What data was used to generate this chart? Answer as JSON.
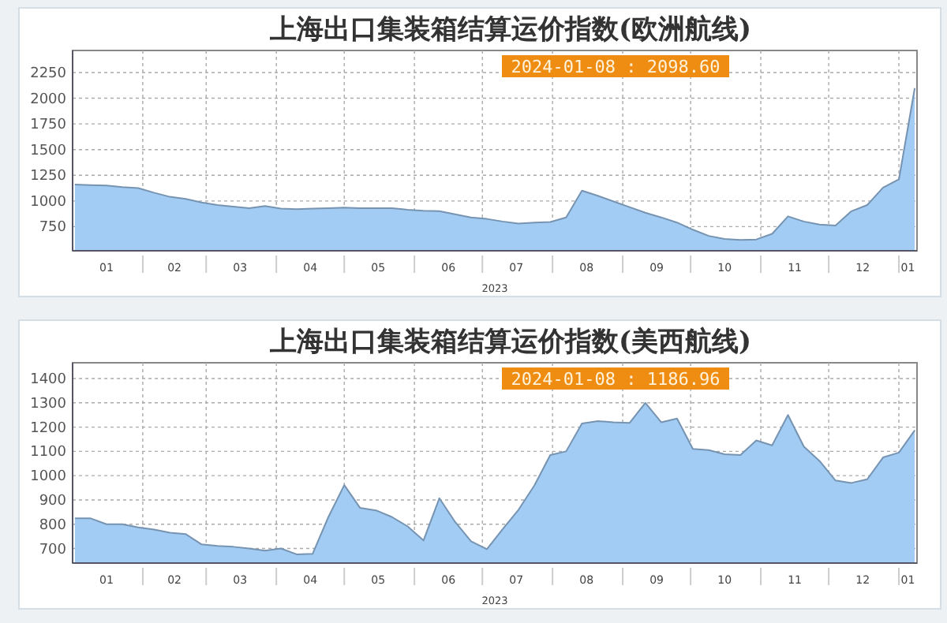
{
  "chart_data": [
    {
      "type": "area",
      "title": "上海出口集装箱结算运价指数(欧洲航线)",
      "xlabel": "2023",
      "annotations": [
        "2024-01-08 : 2098.60"
      ],
      "x": [
        "2023-01-02",
        "2023-01-09",
        "2023-01-16",
        "2023-01-23",
        "2023-01-30",
        "2023-02-06",
        "2023-02-13",
        "2023-02-20",
        "2023-02-27",
        "2023-03-06",
        "2023-03-13",
        "2023-03-20",
        "2023-03-27",
        "2023-04-03",
        "2023-04-10",
        "2023-04-17",
        "2023-04-24",
        "2023-05-01",
        "2023-05-08",
        "2023-05-15",
        "2023-05-22",
        "2023-05-29",
        "2023-06-05",
        "2023-06-12",
        "2023-06-19",
        "2023-06-26",
        "2023-07-03",
        "2023-07-10",
        "2023-07-17",
        "2023-07-24",
        "2023-07-31",
        "2023-08-07",
        "2023-08-14",
        "2023-08-21",
        "2023-08-28",
        "2023-09-04",
        "2023-09-11",
        "2023-09-18",
        "2023-09-25",
        "2023-10-02",
        "2023-10-09",
        "2023-10-16",
        "2023-10-23",
        "2023-10-30",
        "2023-11-06",
        "2023-11-13",
        "2023-11-20",
        "2023-11-27",
        "2023-12-04",
        "2023-12-11",
        "2023-12-18",
        "2023-12-25",
        "2024-01-01",
        "2024-01-08"
      ],
      "series": [
        {
          "color": "#a3ccf4",
          "values": [
            1160,
            1155,
            1150,
            1135,
            1125,
            1080,
            1040,
            1020,
            985,
            960,
            945,
            930,
            950,
            925,
            920,
            925,
            930,
            935,
            930,
            930,
            930,
            915,
            905,
            900,
            870,
            840,
            825,
            800,
            780,
            790,
            795,
            840,
            1100,
            1050,
            995,
            940,
            885,
            840,
            790,
            720,
            660,
            630,
            620,
            625,
            680,
            850,
            800,
            770,
            760,
            900,
            960,
            1130,
            1210,
            2098.6
          ]
        }
      ],
      "xlim": [
        "2023-01-01",
        "2024-01-09"
      ],
      "xticks": [
        {
          "value": "2023-01-16",
          "label": "01"
        },
        {
          "value": "2023-02-01",
          "label": null
        },
        {
          "value": "2023-02-15",
          "label": "02"
        },
        {
          "value": "2023-03-01",
          "label": null
        },
        {
          "value": "2023-03-16",
          "label": "03"
        },
        {
          "value": "2023-04-01",
          "label": null
        },
        {
          "value": "2023-04-16",
          "label": "04"
        },
        {
          "value": "2023-05-01",
          "label": null
        },
        {
          "value": "2023-05-16",
          "label": "05"
        },
        {
          "value": "2023-06-01",
          "label": null
        },
        {
          "value": "2023-06-16",
          "label": "06"
        },
        {
          "value": "2023-07-01",
          "label": null
        },
        {
          "value": "2023-07-16",
          "label": "07"
        },
        {
          "value": "2023-08-01",
          "label": null
        },
        {
          "value": "2023-08-16",
          "label": "08"
        },
        {
          "value": "2023-09-01",
          "label": null
        },
        {
          "value": "2023-09-16",
          "label": "09"
        },
        {
          "value": "2023-10-01",
          "label": null
        },
        {
          "value": "2023-10-16",
          "label": "10"
        },
        {
          "value": "2023-11-01",
          "label": null
        },
        {
          "value": "2023-11-16",
          "label": "11"
        },
        {
          "value": "2023-12-01",
          "label": null
        },
        {
          "value": "2023-12-16",
          "label": "12"
        },
        {
          "value": "2024-01-01",
          "label": null
        },
        {
          "value": "2024-01-05",
          "label": "01"
        }
      ],
      "ylim": [
        515,
        2465
      ],
      "yticks": [
        750,
        1000,
        1250,
        1500,
        1750,
        2000,
        2250
      ],
      "grid": true
    },
    {
      "type": "area",
      "title": "上海出口集装箱结算运价指数(美西航线)",
      "xlabel": "2023",
      "annotations": [
        "2024-01-08 : 1186.96"
      ],
      "x": [
        "2023-01-02",
        "2023-01-09",
        "2023-01-16",
        "2023-01-23",
        "2023-01-30",
        "2023-02-06",
        "2023-02-13",
        "2023-02-20",
        "2023-02-27",
        "2023-03-06",
        "2023-03-13",
        "2023-03-20",
        "2023-03-27",
        "2023-04-03",
        "2023-04-10",
        "2023-04-17",
        "2023-04-24",
        "2023-05-01",
        "2023-05-08",
        "2023-05-15",
        "2023-05-22",
        "2023-05-29",
        "2023-06-05",
        "2023-06-12",
        "2023-06-19",
        "2023-06-26",
        "2023-07-03",
        "2023-07-10",
        "2023-07-17",
        "2023-07-24",
        "2023-07-31",
        "2023-08-07",
        "2023-08-14",
        "2023-08-21",
        "2023-08-28",
        "2023-09-04",
        "2023-09-11",
        "2023-09-18",
        "2023-09-25",
        "2023-10-02",
        "2023-10-09",
        "2023-10-16",
        "2023-10-23",
        "2023-10-30",
        "2023-11-06",
        "2023-11-13",
        "2023-11-20",
        "2023-11-27",
        "2023-12-04",
        "2023-12-11",
        "2023-12-18",
        "2023-12-25",
        "2024-01-01",
        "2024-01-08"
      ],
      "series": [
        {
          "color": "#a3ccf4",
          "values": [
            824,
            824,
            800,
            800,
            787,
            778,
            765,
            759,
            717,
            711,
            707,
            700,
            691,
            700,
            676,
            678,
            830,
            961,
            867,
            857,
            830,
            791,
            733,
            907,
            809,
            730,
            697,
            780,
            860,
            960,
            1085,
            1100,
            1215,
            1225,
            1220,
            1217,
            1300,
            1220,
            1235,
            1110,
            1105,
            1088,
            1085,
            1145,
            1125,
            1250,
            1120,
            1060,
            980,
            970,
            985,
            1075,
            1095,
            1186.96
          ]
        }
      ],
      "xlim": [
        "2023-01-01",
        "2024-01-09"
      ],
      "xticks": [
        {
          "value": "2023-01-16",
          "label": "01"
        },
        {
          "value": "2023-02-01",
          "label": null
        },
        {
          "value": "2023-02-15",
          "label": "02"
        },
        {
          "value": "2023-03-01",
          "label": null
        },
        {
          "value": "2023-03-16",
          "label": "03"
        },
        {
          "value": "2023-04-01",
          "label": null
        },
        {
          "value": "2023-04-16",
          "label": "04"
        },
        {
          "value": "2023-05-01",
          "label": null
        },
        {
          "value": "2023-05-16",
          "label": "05"
        },
        {
          "value": "2023-06-01",
          "label": null
        },
        {
          "value": "2023-06-16",
          "label": "06"
        },
        {
          "value": "2023-07-01",
          "label": null
        },
        {
          "value": "2023-07-16",
          "label": "07"
        },
        {
          "value": "2023-08-01",
          "label": null
        },
        {
          "value": "2023-08-16",
          "label": "08"
        },
        {
          "value": "2023-09-01",
          "label": null
        },
        {
          "value": "2023-09-16",
          "label": "09"
        },
        {
          "value": "2023-10-01",
          "label": null
        },
        {
          "value": "2023-10-16",
          "label": "10"
        },
        {
          "value": "2023-11-01",
          "label": null
        },
        {
          "value": "2023-11-16",
          "label": "11"
        },
        {
          "value": "2023-12-01",
          "label": null
        },
        {
          "value": "2023-12-16",
          "label": "12"
        },
        {
          "value": "2024-01-01",
          "label": null
        },
        {
          "value": "2024-01-05",
          "label": "01"
        }
      ],
      "ylim": [
        640,
        1465
      ],
      "yticks": [
        700,
        800,
        900,
        1000,
        1100,
        1200,
        1300,
        1400
      ],
      "grid": true
    }
  ]
}
